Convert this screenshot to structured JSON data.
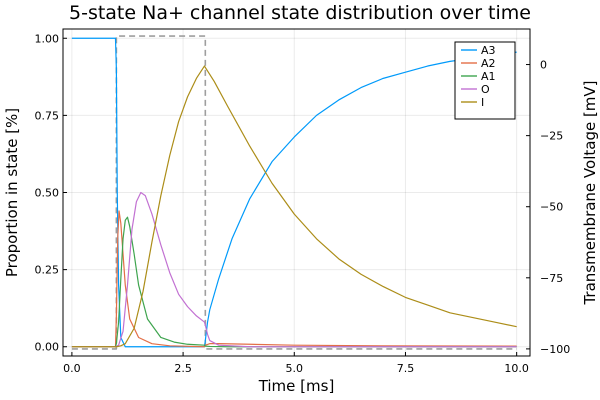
{
  "chart_data": {
    "type": "line",
    "title": "5-state Na+ channel state distribution over time",
    "xlabel": "Time [ms]",
    "ylabel": "Proportion in state [%]",
    "y2label": "Transmembrane Voltage [mV]",
    "xlim": [
      -0.2,
      10.3
    ],
    "ylim": [
      -0.03,
      1.03
    ],
    "y2lim": [
      -102.5,
      12.5
    ],
    "xticks": [
      0.0,
      2.5,
      5.0,
      7.5,
      10.0
    ],
    "xtick_labels": [
      "0.0",
      "2.5",
      "5.0",
      "7.5",
      "10.0"
    ],
    "yticks": [
      0.0,
      0.25,
      0.5,
      0.75,
      1.0
    ],
    "ytick_labels": [
      "0.00",
      "0.25",
      "0.50",
      "0.75",
      "1.00"
    ],
    "y2ticks": [
      0,
      -25,
      -50,
      -75,
      -100
    ],
    "y2tick_labels": [
      "0",
      "−25",
      "−50",
      "−75",
      "−100"
    ],
    "grid": true,
    "legend_position": "top-right",
    "series": [
      {
        "name": "A3",
        "color": "#009AFA",
        "axis": "left",
        "x": [
          0,
          0.98,
          1.0,
          1.02,
          1.05,
          1.1,
          1.2,
          1.5,
          2.0,
          2.5,
          2.98,
          3.0,
          3.05,
          3.1,
          3.3,
          3.6,
          4.0,
          4.5,
          5.0,
          5.5,
          6.0,
          6.5,
          7.0,
          7.5,
          8.0,
          8.5,
          9.0,
          9.5,
          10.0
        ],
        "y": [
          1.0,
          1.0,
          0.9,
          0.5,
          0.2,
          0.03,
          0.0,
          0.0,
          0.0,
          0.0,
          0.0,
          0.02,
          0.08,
          0.12,
          0.22,
          0.35,
          0.48,
          0.6,
          0.68,
          0.75,
          0.8,
          0.84,
          0.87,
          0.89,
          0.91,
          0.925,
          0.935,
          0.945,
          0.955
        ]
      },
      {
        "name": "A2",
        "color": "#E36F47",
        "axis": "left",
        "x": [
          0,
          0.98,
          1.0,
          1.03,
          1.06,
          1.1,
          1.15,
          1.2,
          1.3,
          1.5,
          1.8,
          2.2,
          2.98,
          3.0,
          3.1,
          3.3,
          4.0,
          5.0,
          7.0,
          10.0
        ],
        "y": [
          0.0,
          0.0,
          0.1,
          0.35,
          0.44,
          0.4,
          0.3,
          0.2,
          0.09,
          0.03,
          0.01,
          0.003,
          0.0,
          0.005,
          0.01,
          0.01,
          0.008,
          0.005,
          0.003,
          0.002
        ]
      },
      {
        "name": "A1",
        "color": "#3EA44E",
        "axis": "left",
        "x": [
          0,
          0.98,
          1.0,
          1.05,
          1.1,
          1.15,
          1.2,
          1.25,
          1.3,
          1.4,
          1.5,
          1.7,
          2.0,
          2.3,
          2.6,
          2.98,
          3.0,
          3.1,
          3.5,
          5.0,
          10.0
        ],
        "y": [
          0.0,
          0.0,
          0.01,
          0.08,
          0.22,
          0.35,
          0.41,
          0.42,
          0.39,
          0.3,
          0.2,
          0.09,
          0.03,
          0.015,
          0.008,
          0.005,
          0.002,
          0.001,
          0.0,
          0.0,
          0.0
        ]
      },
      {
        "name": "O",
        "color": "#C271D2",
        "axis": "left",
        "x": [
          0,
          0.98,
          1.05,
          1.15,
          1.25,
          1.35,
          1.45,
          1.55,
          1.65,
          1.8,
          2.0,
          2.2,
          2.4,
          2.6,
          2.8,
          2.98,
          3.0,
          3.05,
          3.1,
          3.3,
          4.0,
          6.0,
          10.0
        ],
        "y": [
          0.0,
          0.0,
          0.005,
          0.05,
          0.2,
          0.38,
          0.47,
          0.5,
          0.49,
          0.43,
          0.33,
          0.24,
          0.17,
          0.13,
          0.1,
          0.08,
          0.07,
          0.04,
          0.02,
          0.005,
          0.0,
          0.0,
          0.0
        ]
      },
      {
        "name": "I",
        "color": "#AC8D18",
        "axis": "left",
        "x": [
          0,
          1.0,
          1.1,
          1.2,
          1.4,
          1.6,
          1.8,
          2.0,
          2.2,
          2.4,
          2.6,
          2.8,
          2.98,
          3.2,
          3.5,
          4.0,
          4.5,
          5.0,
          5.5,
          6.0,
          6.5,
          7.0,
          7.5,
          8.0,
          8.5,
          9.0,
          9.5,
          10.0
        ],
        "y": [
          0.0,
          0.0,
          0.003,
          0.01,
          0.06,
          0.18,
          0.34,
          0.49,
          0.62,
          0.73,
          0.81,
          0.87,
          0.91,
          0.86,
          0.78,
          0.65,
          0.53,
          0.43,
          0.35,
          0.285,
          0.235,
          0.195,
          0.16,
          0.135,
          0.11,
          0.095,
          0.08,
          0.065
        ]
      },
      {
        "name": "",
        "color": "#9E9E9E",
        "axis": "right",
        "dashed": true,
        "x": [
          0,
          1.0,
          1.0,
          3.0,
          3.0,
          10.0
        ],
        "y": [
          -100,
          -100,
          10,
          10,
          -100,
          -100
        ]
      }
    ]
  }
}
